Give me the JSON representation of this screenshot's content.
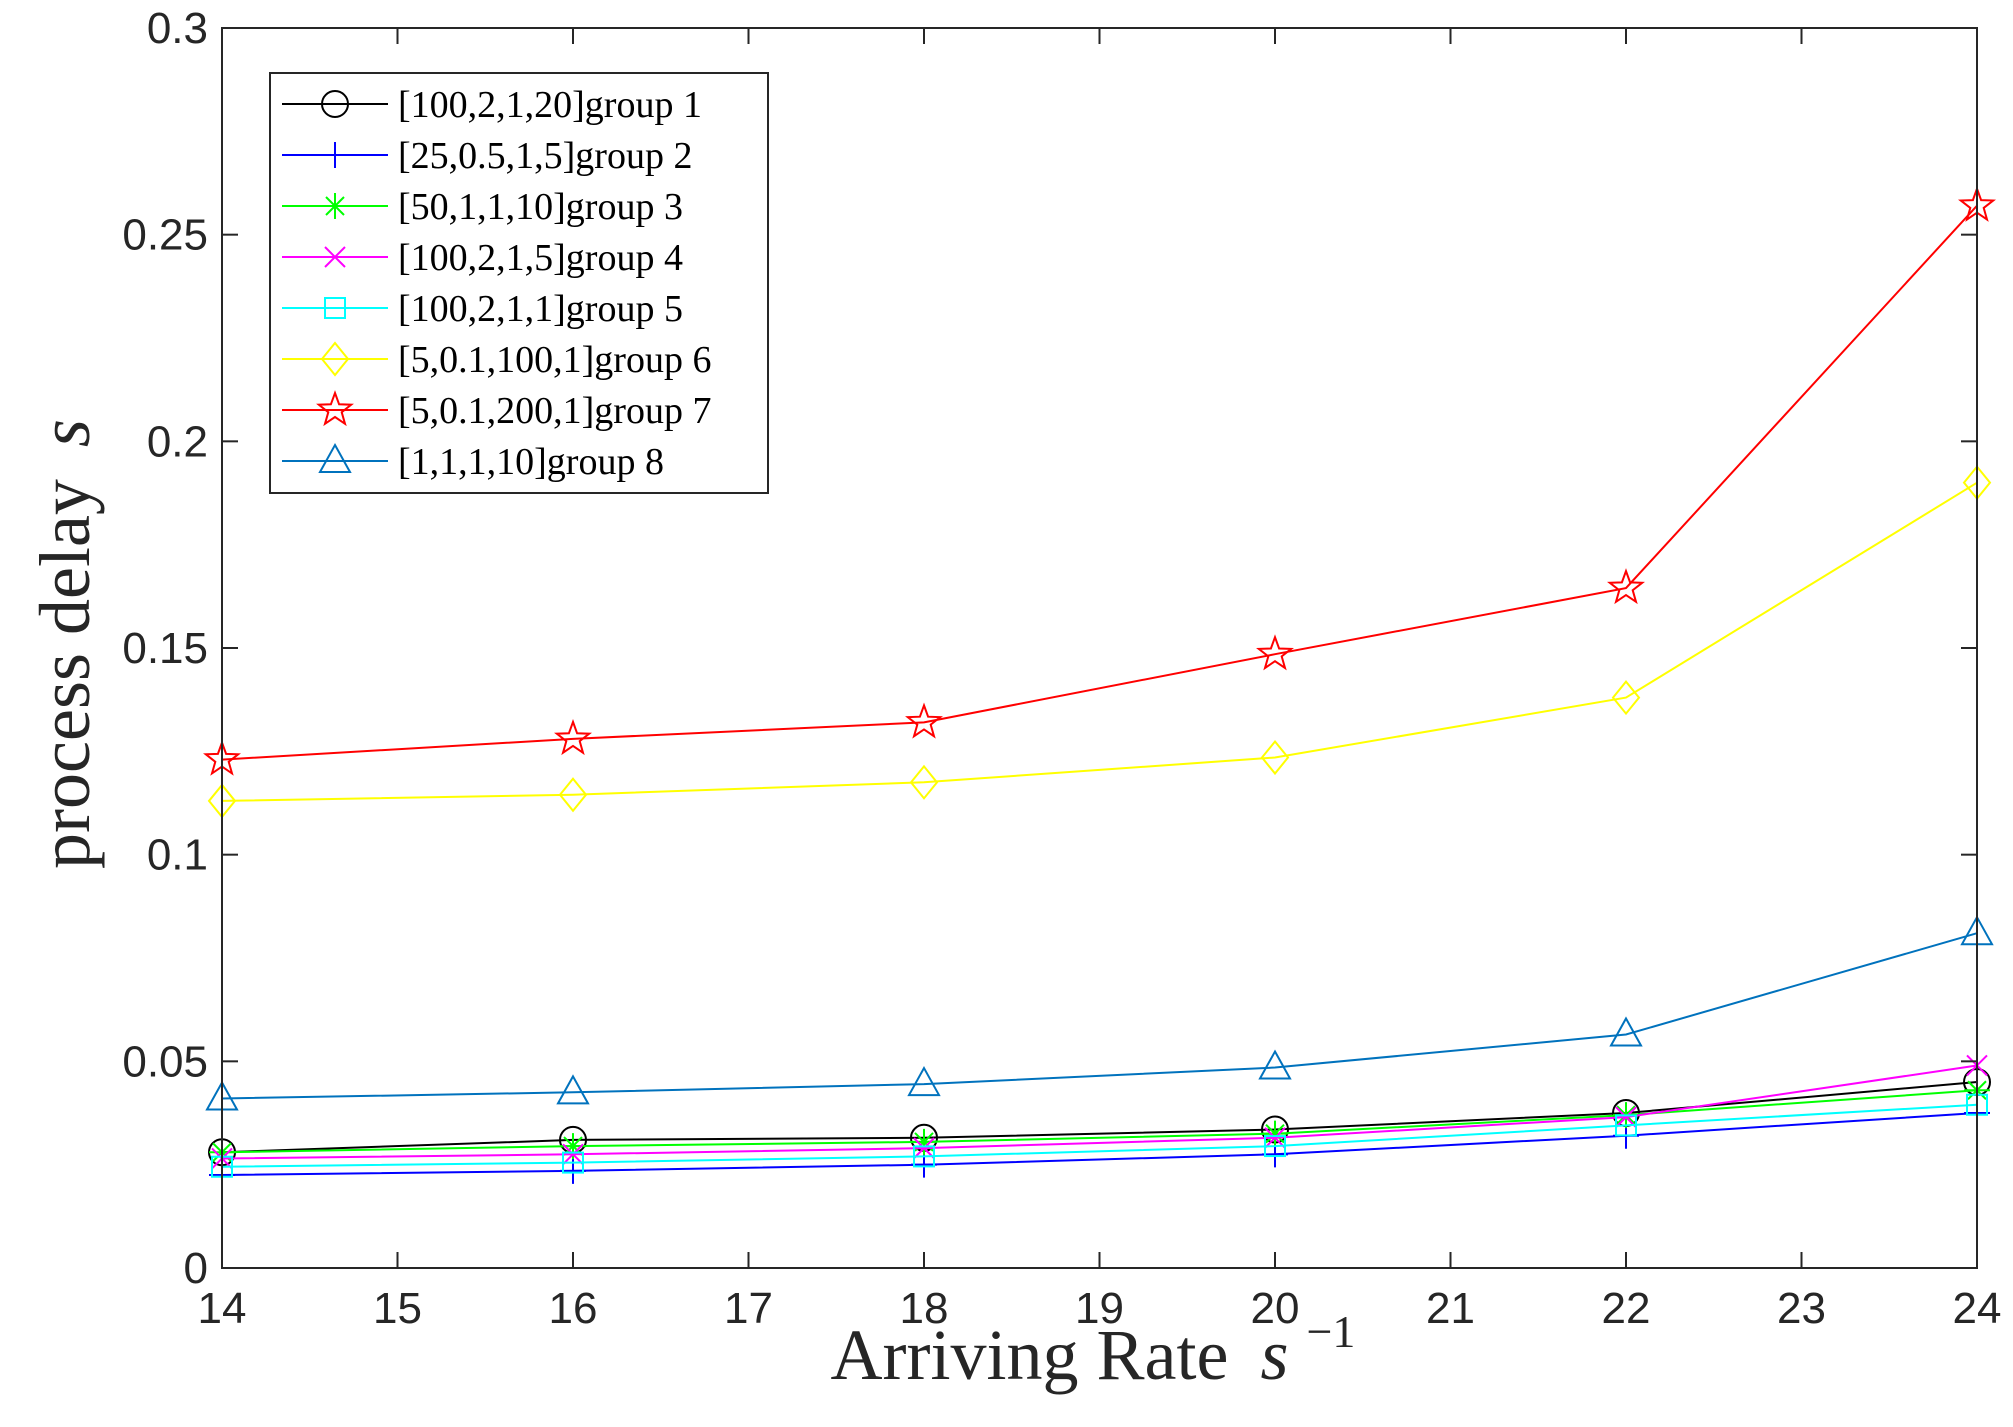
{
  "chart_data": {
    "type": "line",
    "xlabel": "Arriving Rate",
    "xlabel_math": "s",
    "xlabel_sup": "−1",
    "ylabel": "process delay",
    "ylabel_math": "s",
    "xlim": [
      14,
      24
    ],
    "ylim": [
      0,
      0.3
    ],
    "x_ticks": [
      "14",
      "15",
      "16",
      "17",
      "18",
      "19",
      "20",
      "21",
      "22",
      "23",
      "24"
    ],
    "y_ticks": [
      "0",
      "0.05",
      "0.1",
      "0.15",
      "0.2",
      "0.25",
      "0.3"
    ],
    "legend_position": "top-left",
    "grid": false,
    "x": [
      14,
      16,
      18,
      20,
      22,
      24
    ],
    "series": [
      {
        "name": "[100,2,1,20]group 1",
        "color": "#000000",
        "marker": "circle",
        "values": [
          0.028,
          0.031,
          0.0315,
          0.0335,
          0.0375,
          0.045
        ]
      },
      {
        "name": "[25,0.5,1,5]group 2",
        "color": "#0000ff",
        "marker": "plus",
        "values": [
          0.0225,
          0.0235,
          0.025,
          0.0275,
          0.032,
          0.0375
        ]
      },
      {
        "name": "[50,1,1,10]group 3",
        "color": "#00ff00",
        "marker": "asterisk",
        "values": [
          0.028,
          0.0295,
          0.0305,
          0.0325,
          0.037,
          0.043
        ]
      },
      {
        "name": "[100,2,1,5]group 4",
        "color": "#ff00ff",
        "marker": "x",
        "values": [
          0.0265,
          0.0275,
          0.029,
          0.0315,
          0.0365,
          0.049
        ]
      },
      {
        "name": "[100,2,1,1]group 5",
        "color": "#00ffff",
        "marker": "square",
        "values": [
          0.0245,
          0.0255,
          0.027,
          0.0295,
          0.0345,
          0.0395
        ]
      },
      {
        "name": "[5,0.1,100,1]group 6",
        "color": "#ffff00",
        "marker": "diamond",
        "values": [
          0.113,
          0.1145,
          0.1175,
          0.1235,
          0.138,
          0.19
        ]
      },
      {
        "name": "[5,0.1,200,1]group 7",
        "color": "#ff0000",
        "marker": "star",
        "values": [
          0.123,
          0.128,
          0.132,
          0.1485,
          0.1645,
          0.257
        ]
      },
      {
        "name": "[1,1,1,10]group 8",
        "color": "#0072bd",
        "marker": "triangle",
        "values": [
          0.041,
          0.0425,
          0.0445,
          0.0485,
          0.0565,
          0.081
        ]
      }
    ]
  }
}
